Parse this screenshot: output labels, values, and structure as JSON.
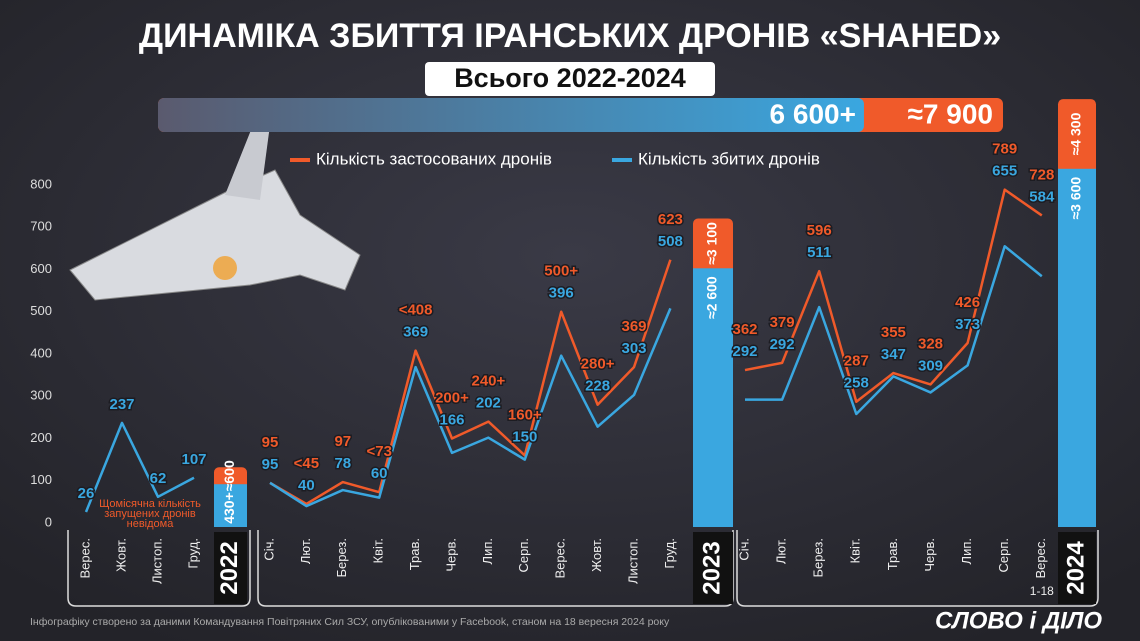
{
  "title": "ДИНАМІКА ЗБИТТЯ ІРАНСЬКИХ ДРОНІВ «SHAHED»",
  "subtitle": "Всього 2022-2024",
  "overall": {
    "values": [
      6600,
      7900
    ],
    "value_labels": [
      "6 600+",
      "≈7 900"
    ]
  },
  "note": [
    "Щомісячна кількість",
    "запущених дронів",
    "невідома"
  ],
  "footnote": "Інфографіку створено за даними Командування Повітряних Сил ЗСУ, опублікованими у Facebook, станом на 18 вересня 2024 року",
  "logo": "СЛОВО і ДІЛО",
  "chart_data": [
    {
      "type": "line",
      "year": "2022",
      "categories": [
        "Верес.",
        "Жовт.",
        "Листоп.",
        "Груд."
      ],
      "ylim": [
        0,
        800
      ],
      "yticks": [
        0,
        100,
        200,
        300,
        400,
        500,
        600,
        700,
        800
      ],
      "series": [
        {
          "name": "Кількість застосованих дронів",
          "color": "#f05a2a",
          "values": [
            null,
            null,
            null,
            null
          ]
        },
        {
          "name": "Кількість збитих дронів",
          "color": "#3aa7e0",
          "values": [
            26,
            237,
            62,
            107
          ]
        }
      ],
      "totals": {
        "values": [
          600,
          430
        ],
        "value_labels": [
          "≈600",
          "430+"
        ]
      }
    },
    {
      "type": "line",
      "year": "2023",
      "categories": [
        "Січ.",
        "Лют.",
        "Берез.",
        "Квіт.",
        "Трав.",
        "Черв.",
        "Лип.",
        "Серп.",
        "Верес.",
        "Жовт.",
        "Листоп.",
        "Груд."
      ],
      "ylim": [
        0,
        800
      ],
      "series": [
        {
          "name": "Кількість застосованих дронів",
          "color": "#f05a2a",
          "values": [
            95,
            45,
            97,
            73,
            408,
            200,
            240,
            160,
            500,
            280,
            369,
            623
          ],
          "value_labels": [
            "95",
            "<45",
            "97",
            "<73",
            "<408",
            "200+",
            "240+",
            "160+",
            "500+",
            "280+",
            "369",
            "623"
          ]
        },
        {
          "name": "Кількість збитих дронів",
          "color": "#3aa7e0",
          "values": [
            95,
            40,
            78,
            60,
            369,
            166,
            202,
            150,
            396,
            228,
            303,
            508
          ]
        }
      ],
      "totals": {
        "values": [
          3100,
          2600
        ],
        "value_labels": [
          "≈3 100",
          "≈2 600"
        ]
      }
    },
    {
      "type": "line",
      "year": "2024",
      "categories": [
        "Січ.",
        "Лют.",
        "Берез.",
        "Квіт.",
        "Трав.",
        "Черв.",
        "Лип.",
        "Серп.",
        "Верес."
      ],
      "x_note": "1-18",
      "ylim": [
        0,
        800
      ],
      "series": [
        {
          "name": "Кількість застосованих дронів",
          "color": "#f05a2a",
          "values": [
            362,
            379,
            596,
            287,
            355,
            328,
            426,
            789,
            728
          ]
        },
        {
          "name": "Кількість збитих дронів",
          "color": "#3aa7e0",
          "values": [
            292,
            292,
            511,
            258,
            347,
            309,
            373,
            655,
            584
          ]
        }
      ],
      "totals": {
        "values": [
          4300,
          3600
        ],
        "value_labels": [
          "≈4 300",
          "≈3 600"
        ]
      }
    }
  ]
}
